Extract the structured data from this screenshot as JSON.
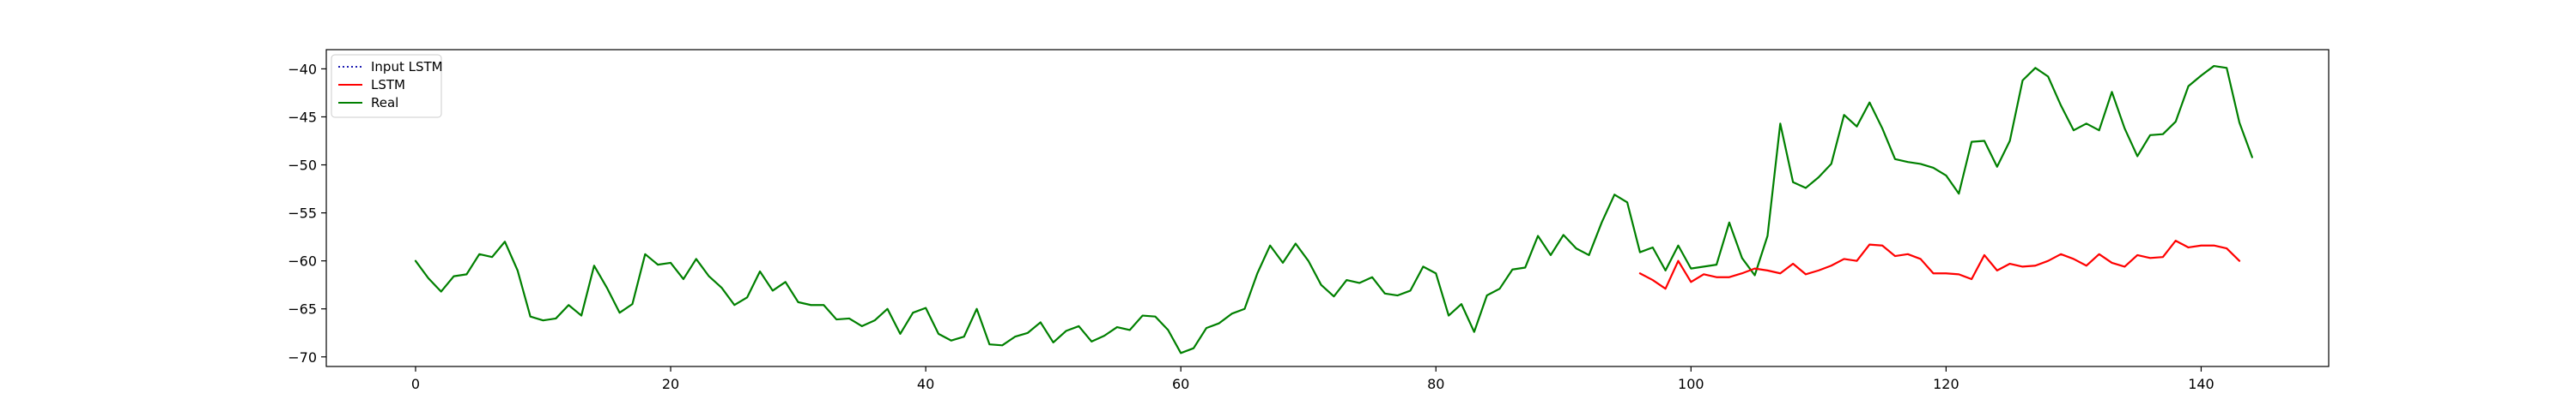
{
  "chart_data": {
    "type": "line",
    "title": "",
    "xlabel": "",
    "ylabel": "",
    "xlim": [
      -7,
      150
    ],
    "ylim": [
      -71,
      -38
    ],
    "xticks": [
      0,
      20,
      40,
      60,
      80,
      100,
      120,
      140
    ],
    "yticks": [
      -40,
      -45,
      -50,
      -55,
      -60,
      -65,
      -70
    ],
    "grid": false,
    "legend": {
      "position": "top-left",
      "entries": [
        {
          "name": "Input LSTM",
          "color": "#1f1fb4",
          "dash": "dotted"
        },
        {
          "name": "LSTM",
          "color": "#ff0000",
          "dash": "solid"
        },
        {
          "name": "Real",
          "color": "#008000",
          "dash": "solid"
        }
      ]
    },
    "series": [
      {
        "name": "Input LSTM",
        "color": "#1f1fb4",
        "x_start": 0,
        "values": []
      },
      {
        "name": "Real",
        "color": "#008000",
        "x_start": 0,
        "values": [
          -60.0,
          -61.8,
          -63.2,
          -61.6,
          -61.4,
          -59.3,
          -59.6,
          -58.0,
          -61.0,
          -65.8,
          -66.2,
          -66.0,
          -64.6,
          -65.7,
          -60.5,
          -62.8,
          -65.4,
          -64.5,
          -59.3,
          -60.4,
          -60.2,
          -61.9,
          -59.8,
          -61.6,
          -62.8,
          -64.6,
          -63.8,
          -61.1,
          -63.1,
          -62.2,
          -64.3,
          -64.6,
          -64.6,
          -66.1,
          -66.0,
          -66.8,
          -66.2,
          -65.0,
          -67.6,
          -65.4,
          -64.9,
          -67.6,
          -68.3,
          -67.9,
          -65.0,
          -68.7,
          -68.8,
          -67.9,
          -67.5,
          -66.4,
          -68.5,
          -67.3,
          -66.8,
          -68.4,
          -67.8,
          -66.9,
          -67.2,
          -65.7,
          -65.8,
          -67.2,
          -69.6,
          -69.1,
          -67.0,
          -66.5,
          -65.5,
          -65.0,
          -61.3,
          -58.4,
          -60.2,
          -58.2,
          -60.0,
          -62.5,
          -63.7,
          -62.0,
          -62.3,
          -61.7,
          -63.4,
          -63.6,
          -63.1,
          -60.6,
          -61.3,
          -65.7,
          -64.5,
          -67.4,
          -63.6,
          -62.9,
          -60.9,
          -60.7,
          -57.4,
          -59.4,
          -57.3,
          -58.7,
          -59.4,
          -56.0,
          -53.1,
          -53.9,
          -59.1,
          -58.6,
          -61.0,
          -58.4,
          -60.8,
          -60.6,
          -60.4,
          -56.0,
          -59.7,
          -61.5,
          -57.4,
          -45.7,
          -51.8,
          -52.4,
          -51.3,
          -49.9,
          -44.8,
          -46.0,
          -43.5,
          -46.2,
          -49.4,
          -49.7,
          -49.9,
          -50.3,
          -51.1,
          -53.0,
          -47.6,
          -47.5,
          -50.2,
          -47.5,
          -41.2,
          -39.9,
          -40.8,
          -43.8,
          -46.4,
          -45.7,
          -46.4,
          -42.4,
          -46.2,
          -49.1,
          -46.9,
          -46.8,
          -45.5,
          -41.8,
          -40.7,
          -39.7,
          -39.9,
          -45.6,
          -49.2
        ]
      },
      {
        "name": "LSTM",
        "color": "#ff0000",
        "x_start": 96,
        "values": [
          -61.3,
          -62.0,
          -62.9,
          -60.0,
          -62.2,
          -61.4,
          -61.7,
          -61.7,
          -61.3,
          -60.8,
          -61.0,
          -61.3,
          -60.3,
          -61.4,
          -61.0,
          -60.5,
          -59.8,
          -60.0,
          -58.3,
          -58.4,
          -59.5,
          -59.3,
          -59.8,
          -61.3,
          -61.3,
          -61.4,
          -61.9,
          -59.4,
          -61.0,
          -60.3,
          -60.6,
          -60.5,
          -60.0,
          -59.3,
          -59.8,
          -60.5,
          -59.3,
          -60.2,
          -60.6,
          -59.4,
          -59.7,
          -59.6,
          -57.9,
          -58.6,
          -58.4,
          -58.4,
          -58.7,
          -60.0
        ]
      }
    ]
  }
}
